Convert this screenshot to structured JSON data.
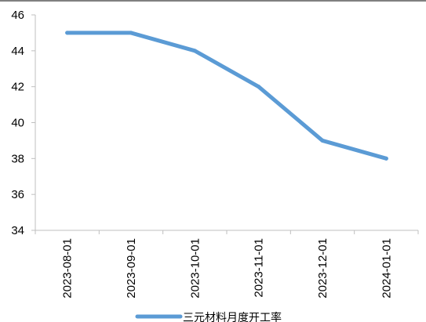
{
  "chart_data": {
    "type": "line",
    "title": "",
    "xlabel": "",
    "ylabel": "",
    "categories": [
      "2023-08-01",
      "2023-09-01",
      "2023-10-01",
      "2023-11-01",
      "2023-12-01",
      "2024-01-01"
    ],
    "series": [
      {
        "name": "三元材料月度开工率",
        "values": [
          45,
          45,
          44,
          42,
          39,
          38
        ],
        "color": "#5B9BD5"
      }
    ],
    "ylim": [
      34,
      46
    ],
    "yticks": [
      34,
      36,
      38,
      40,
      42,
      44,
      46
    ],
    "grid": false,
    "legend_position": "bottom"
  }
}
